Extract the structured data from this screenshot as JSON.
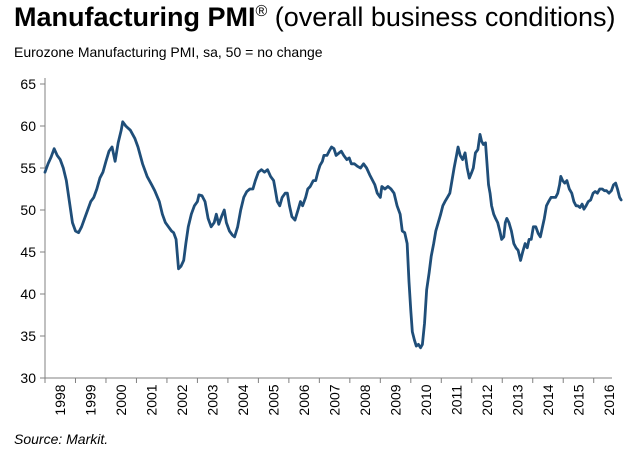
{
  "title": {
    "main": "Manufacturing PMI",
    "registered": "®",
    "rest": " (overall business conditions)"
  },
  "subtitle": "Eurozone Manufacturing PMI, sa, 50 = no change",
  "source": "Source: Markit.",
  "colors": {
    "line": "#1f4e79",
    "axis": "#808080"
  },
  "chart_data": {
    "type": "line",
    "title": "Manufacturing PMI® (overall business conditions)",
    "subtitle": "Eurozone Manufacturing PMI, sa, 50 = no change",
    "xlabel": "",
    "ylabel": "",
    "ylim": [
      30,
      65
    ],
    "xlim": [
      1998.0,
      2016.6
    ],
    "grid": false,
    "legend": "none",
    "y_ticks": [
      30,
      35,
      40,
      45,
      50,
      55,
      60,
      65
    ],
    "x_ticks": [
      "1998",
      "1999",
      "2000",
      "2001",
      "2002",
      "2003",
      "2004",
      "2005",
      "2006",
      "2007",
      "2008",
      "2009",
      "2010",
      "2011",
      "2012",
      "2013",
      "2014",
      "2015",
      "2016"
    ],
    "series": [
      {
        "values": [
          [
            1998.0,
            54.5
          ],
          [
            1998.1,
            55.5
          ],
          [
            1998.2,
            56.3
          ],
          [
            1998.3,
            57.3
          ],
          [
            1998.4,
            56.5
          ],
          [
            1998.5,
            56.0
          ],
          [
            1998.6,
            55.0
          ],
          [
            1998.7,
            53.5
          ],
          [
            1998.8,
            51.0
          ],
          [
            1998.9,
            48.5
          ],
          [
            1999.0,
            47.5
          ],
          [
            1999.1,
            47.3
          ],
          [
            1999.2,
            48.0
          ],
          [
            1999.3,
            49.0
          ],
          [
            1999.4,
            50.0
          ],
          [
            1999.5,
            51.0
          ],
          [
            1999.6,
            51.5
          ],
          [
            1999.7,
            52.5
          ],
          [
            1999.8,
            53.8
          ],
          [
            1999.9,
            54.5
          ],
          [
            2000.0,
            55.8
          ],
          [
            2000.1,
            57.0
          ],
          [
            2000.2,
            57.5
          ],
          [
            2000.3,
            55.8
          ],
          [
            2000.4,
            58.0
          ],
          [
            2000.5,
            59.5
          ],
          [
            2000.55,
            60.5
          ],
          [
            2000.65,
            60.0
          ],
          [
            2000.8,
            59.5
          ],
          [
            2000.95,
            58.5
          ],
          [
            2001.05,
            57.5
          ],
          [
            2001.2,
            55.5
          ],
          [
            2001.35,
            54.0
          ],
          [
            2001.5,
            53.0
          ],
          [
            2001.6,
            52.3
          ],
          [
            2001.75,
            51.0
          ],
          [
            2001.85,
            49.5
          ],
          [
            2001.95,
            48.5
          ],
          [
            2002.05,
            48.0
          ],
          [
            2002.15,
            47.5
          ],
          [
            2002.22,
            47.3
          ],
          [
            2002.3,
            46.5
          ],
          [
            2002.38,
            43.0
          ],
          [
            2002.46,
            43.3
          ],
          [
            2002.55,
            44.0
          ],
          [
            2002.62,
            46.0
          ],
          [
            2002.7,
            48.0
          ],
          [
            2002.8,
            49.5
          ],
          [
            2002.9,
            50.5
          ],
          [
            2003.0,
            51.0
          ],
          [
            2003.05,
            51.8
          ],
          [
            2003.15,
            51.7
          ],
          [
            2003.25,
            51.0
          ],
          [
            2003.35,
            49.0
          ],
          [
            2003.45,
            48.0
          ],
          [
            2003.55,
            48.5
          ],
          [
            2003.62,
            49.5
          ],
          [
            2003.7,
            48.3
          ],
          [
            2003.8,
            49.3
          ],
          [
            2003.88,
            50.0
          ],
          [
            2003.95,
            48.5
          ],
          [
            2004.05,
            47.5
          ],
          [
            2004.15,
            47.0
          ],
          [
            2004.22,
            46.8
          ],
          [
            2004.32,
            48.0
          ],
          [
            2004.42,
            50.0
          ],
          [
            2004.52,
            51.5
          ],
          [
            2004.62,
            52.2
          ],
          [
            2004.72,
            52.5
          ],
          [
            2004.82,
            52.5
          ],
          [
            2004.9,
            53.5
          ],
          [
            2005.0,
            54.5
          ],
          [
            2005.1,
            54.8
          ],
          [
            2005.2,
            54.5
          ],
          [
            2005.3,
            54.8
          ],
          [
            2005.4,
            54.0
          ],
          [
            2005.5,
            53.5
          ],
          [
            2005.55,
            52.5
          ],
          [
            2005.62,
            51.0
          ],
          [
            2005.7,
            50.5
          ],
          [
            2005.78,
            51.5
          ],
          [
            2005.88,
            52.0
          ],
          [
            2005.95,
            52.0
          ],
          [
            2006.02,
            50.5
          ],
          [
            2006.1,
            49.2
          ],
          [
            2006.2,
            48.8
          ],
          [
            2006.3,
            50.0
          ],
          [
            2006.38,
            51.0
          ],
          [
            2006.45,
            50.5
          ],
          [
            2006.55,
            51.5
          ],
          [
            2006.62,
            52.5
          ],
          [
            2006.7,
            52.8
          ],
          [
            2006.8,
            53.5
          ],
          [
            2006.88,
            53.5
          ],
          [
            2006.95,
            54.5
          ],
          [
            2007.02,
            55.3
          ],
          [
            2007.1,
            55.8
          ],
          [
            2007.15,
            56.5
          ],
          [
            2007.25,
            56.5
          ],
          [
            2007.32,
            57.0
          ],
          [
            2007.4,
            57.5
          ],
          [
            2007.48,
            57.3
          ],
          [
            2007.55,
            56.5
          ],
          [
            2007.65,
            56.8
          ],
          [
            2007.72,
            57.0
          ],
          [
            2007.8,
            56.5
          ],
          [
            2007.9,
            56.0
          ],
          [
            2007.98,
            56.2
          ],
          [
            2008.05,
            55.5
          ],
          [
            2008.15,
            55.5
          ],
          [
            2008.25,
            55.2
          ],
          [
            2008.35,
            55.0
          ],
          [
            2008.45,
            55.5
          ],
          [
            2008.55,
            55.0
          ],
          [
            2008.65,
            54.2
          ],
          [
            2008.75,
            53.5
          ],
          [
            2008.82,
            53.0
          ],
          [
            2008.9,
            52.0
          ],
          [
            2009.0,
            51.5
          ],
          [
            2009.05,
            52.8
          ],
          [
            2009.15,
            52.5
          ],
          [
            2009.25,
            52.8
          ],
          [
            2009.35,
            52.5
          ],
          [
            2009.45,
            52.0
          ],
          [
            2009.55,
            50.5
          ],
          [
            2009.65,
            49.5
          ],
          [
            2009.72,
            47.5
          ],
          [
            2009.8,
            47.3
          ],
          [
            2009.88,
            46.0
          ],
          [
            2009.94,
            41.5
          ],
          [
            2010.0,
            38.0
          ],
          [
            2010.05,
            35.5
          ],
          [
            2010.12,
            34.5
          ],
          [
            2010.18,
            33.8
          ],
          [
            2010.25,
            34.0
          ],
          [
            2010.32,
            33.6
          ],
          [
            2010.38,
            34.0
          ],
          [
            2010.45,
            36.5
          ],
          [
            2010.52,
            40.5
          ],
          [
            2010.6,
            42.5
          ],
          [
            2010.67,
            44.5
          ],
          [
            2010.75,
            46.0
          ],
          [
            2010.82,
            47.5
          ],
          [
            2010.9,
            48.5
          ],
          [
            2010.98,
            49.5
          ],
          [
            2011.05,
            50.5
          ],
          [
            2011.12,
            51.0
          ],
          [
            2011.2,
            51.5
          ],
          [
            2011.28,
            52.0
          ],
          [
            2011.35,
            53.5
          ],
          [
            2011.42,
            55.0
          ],
          [
            2011.5,
            56.5
          ],
          [
            2011.55,
            57.5
          ],
          [
            2011.62,
            56.5
          ],
          [
            2011.7,
            56.0
          ],
          [
            2011.78,
            56.8
          ],
          [
            2011.85,
            55.0
          ],
          [
            2011.92,
            53.8
          ],
          [
            2012.0,
            54.5
          ],
          [
            2012.05,
            55.0
          ],
          [
            2012.12,
            56.8
          ],
          [
            2012.2,
            57.2
          ],
          [
            2012.27,
            59.0
          ],
          [
            2012.32,
            58.2
          ],
          [
            2012.38,
            57.8
          ],
          [
            2012.45,
            58.0
          ],
          [
            2012.5,
            55.5
          ],
          [
            2012.55,
            53.0
          ],
          [
            2012.6,
            52.0
          ],
          [
            2012.65,
            50.5
          ],
          [
            2012.72,
            49.5
          ],
          [
            2012.78,
            49.0
          ],
          [
            2012.85,
            48.5
          ],
          [
            2012.92,
            47.5
          ],
          [
            2012.98,
            46.5
          ],
          [
            2013.05,
            46.8
          ],
          [
            2013.1,
            48.5
          ],
          [
            2013.15,
            49.0
          ],
          [
            2013.22,
            48.5
          ],
          [
            2013.3,
            47.5
          ],
          [
            2013.38,
            46.0
          ],
          [
            2013.45,
            45.5
          ],
          [
            2013.52,
            45.2
          ],
          [
            2013.6,
            44.0
          ],
          [
            2013.67,
            45.0
          ],
          [
            2013.75,
            46.0
          ],
          [
            2013.82,
            45.5
          ],
          [
            2013.88,
            46.5
          ],
          [
            2013.95,
            46.5
          ],
          [
            2014.02,
            48.0
          ],
          [
            2014.1,
            48.0
          ],
          [
            2014.18,
            47.2
          ],
          [
            2014.25,
            46.8
          ],
          [
            2014.32,
            48.0
          ],
          [
            2014.38,
            49.0
          ],
          [
            2014.45,
            50.5
          ],
          [
            2014.52,
            51.0
          ],
          [
            2014.6,
            51.5
          ],
          [
            2014.68,
            51.5
          ],
          [
            2014.75,
            51.5
          ],
          [
            2014.82,
            52.0
          ],
          [
            2014.88,
            53.0
          ],
          [
            2014.92,
            54.0
          ],
          [
            2014.98,
            53.5
          ],
          [
            2015.05,
            53.2
          ],
          [
            2015.12,
            53.5
          ],
          [
            2015.2,
            52.5
          ],
          [
            2015.28,
            52.0
          ],
          [
            2015.35,
            51.0
          ],
          [
            2015.42,
            50.5
          ],
          [
            2015.48,
            50.5
          ],
          [
            2015.55,
            50.3
          ],
          [
            2015.62,
            50.7
          ],
          [
            2015.68,
            50.1
          ],
          [
            2015.75,
            50.5
          ],
          [
            2015.82,
            51.0
          ],
          [
            2015.9,
            51.2
          ],
          [
            2015.98,
            52.0
          ],
          [
            2016.05,
            52.2
          ],
          [
            2016.12,
            52.0
          ],
          [
            2016.2,
            52.5
          ],
          [
            2016.28,
            52.5
          ],
          [
            2016.35,
            52.3
          ],
          [
            2016.42,
            52.3
          ],
          [
            2016.5,
            52.0
          ],
          [
            2016.58,
            52.3
          ],
          [
            2016.65,
            53.0
          ],
          [
            2016.72,
            53.2
          ],
          [
            2016.78,
            52.5
          ],
          [
            2016.85,
            51.5
          ],
          [
            2016.9,
            51.2
          ]
        ]
      }
    ]
  }
}
